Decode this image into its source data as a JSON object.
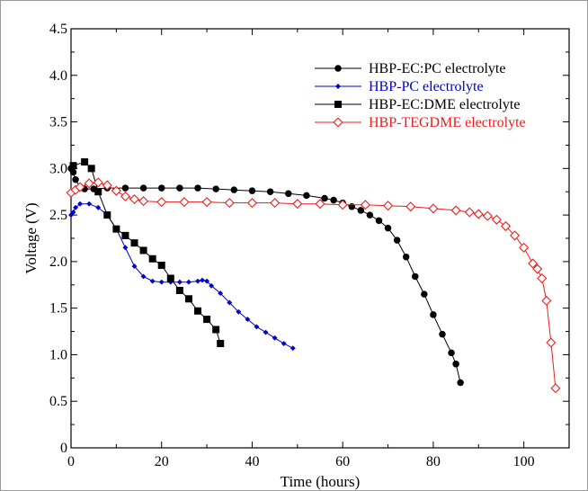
{
  "chart_data": {
    "type": "line",
    "xlabel": "Time (hours)",
    "ylabel": "Voltage (V)",
    "xlim": [
      0,
      110
    ],
    "ylim": [
      0,
      4.5
    ],
    "x_ticks": [
      "0",
      "20",
      "40",
      "60",
      "80",
      "100"
    ],
    "y_ticks": [
      "0",
      "0.5",
      "1.0",
      "1.5",
      "2.0",
      "2.5",
      "3.0",
      "3.5",
      "4.0",
      "4.5"
    ],
    "legend_position": "top-right",
    "grid": false,
    "series": [
      {
        "name": "HBP-EC:PC electrolyte",
        "color": "#000000",
        "marker": "circle",
        "points": [
          [
            0,
            3.0
          ],
          [
            0.5,
            2.96
          ],
          [
            1,
            2.88
          ],
          [
            2,
            2.8
          ],
          [
            3,
            2.78
          ],
          [
            5,
            2.78
          ],
          [
            8,
            2.79
          ],
          [
            12,
            2.79
          ],
          [
            16,
            2.79
          ],
          [
            20,
            2.79
          ],
          [
            24,
            2.79
          ],
          [
            28,
            2.79
          ],
          [
            32,
            2.78
          ],
          [
            36,
            2.77
          ],
          [
            40,
            2.76
          ],
          [
            44,
            2.75
          ],
          [
            48,
            2.73
          ],
          [
            52,
            2.71
          ],
          [
            56,
            2.68
          ],
          [
            58,
            2.66
          ],
          [
            60,
            2.63
          ],
          [
            62,
            2.59
          ],
          [
            64,
            2.55
          ],
          [
            66,
            2.5
          ],
          [
            68,
            2.44
          ],
          [
            70,
            2.36
          ],
          [
            72,
            2.23
          ],
          [
            74,
            2.05
          ],
          [
            76,
            1.84
          ],
          [
            78,
            1.65
          ],
          [
            80,
            1.43
          ],
          [
            82,
            1.22
          ],
          [
            84,
            1.02
          ],
          [
            85,
            0.9
          ],
          [
            86,
            0.7
          ]
        ]
      },
      {
        "name": "HBP-PC electrolyte",
        "color": "#0000cc",
        "marker": "diamond",
        "points": [
          [
            0,
            2.5
          ],
          [
            0.5,
            2.53
          ],
          [
            1,
            2.58
          ],
          [
            2,
            2.62
          ],
          [
            4,
            2.62
          ],
          [
            6,
            2.58
          ],
          [
            8,
            2.5
          ],
          [
            10,
            2.35
          ],
          [
            12,
            2.15
          ],
          [
            14,
            1.95
          ],
          [
            16,
            1.84
          ],
          [
            18,
            1.79
          ],
          [
            20,
            1.78
          ],
          [
            22,
            1.78
          ],
          [
            24,
            1.78
          ],
          [
            26,
            1.78
          ],
          [
            28,
            1.79
          ],
          [
            29,
            1.8
          ],
          [
            30,
            1.79
          ],
          [
            31,
            1.74
          ],
          [
            33,
            1.66
          ],
          [
            35,
            1.56
          ],
          [
            37,
            1.46
          ],
          [
            39,
            1.38
          ],
          [
            41,
            1.3
          ],
          [
            43,
            1.24
          ],
          [
            45,
            1.18
          ],
          [
            47,
            1.12
          ],
          [
            49,
            1.07
          ]
        ]
      },
      {
        "name": "HBP-EC:DME electrolyte",
        "color": "#000000",
        "marker": "square",
        "points": [
          [
            0.5,
            3.03
          ],
          [
            3,
            3.07
          ],
          [
            4.5,
            3.0
          ],
          [
            6,
            2.75
          ],
          [
            8,
            2.5
          ],
          [
            10,
            2.35
          ],
          [
            12,
            2.28
          ],
          [
            14,
            2.2
          ],
          [
            16,
            2.12
          ],
          [
            18,
            2.03
          ],
          [
            20,
            1.96
          ],
          [
            22,
            1.82
          ],
          [
            24,
            1.69
          ],
          [
            26,
            1.6
          ],
          [
            28,
            1.47
          ],
          [
            30,
            1.38
          ],
          [
            32,
            1.27
          ],
          [
            33,
            1.12
          ]
        ]
      },
      {
        "name": "HBP-TEGDME electrolyte",
        "color": "#ee1c1c",
        "marker": "diamond-open",
        "points": [
          [
            0,
            2.74
          ],
          [
            1,
            2.77
          ],
          [
            2,
            2.8
          ],
          [
            4,
            2.84
          ],
          [
            6,
            2.85
          ],
          [
            8,
            2.82
          ],
          [
            10,
            2.76
          ],
          [
            12,
            2.7
          ],
          [
            14,
            2.67
          ],
          [
            16,
            2.65
          ],
          [
            20,
            2.64
          ],
          [
            25,
            2.64
          ],
          [
            30,
            2.64
          ],
          [
            35,
            2.63
          ],
          [
            40,
            2.63
          ],
          [
            45,
            2.63
          ],
          [
            50,
            2.62
          ],
          [
            55,
            2.62
          ],
          [
            60,
            2.61
          ],
          [
            65,
            2.61
          ],
          [
            70,
            2.6
          ],
          [
            75,
            2.59
          ],
          [
            80,
            2.57
          ],
          [
            85,
            2.55
          ],
          [
            88,
            2.53
          ],
          [
            90,
            2.51
          ],
          [
            92,
            2.49
          ],
          [
            94,
            2.45
          ],
          [
            96,
            2.38
          ],
          [
            98,
            2.28
          ],
          [
            100,
            2.15
          ],
          [
            102,
            1.98
          ],
          [
            103,
            1.92
          ],
          [
            104,
            1.82
          ],
          [
            105,
            1.58
          ],
          [
            106,
            1.13
          ],
          [
            107,
            0.64
          ]
        ]
      }
    ]
  }
}
